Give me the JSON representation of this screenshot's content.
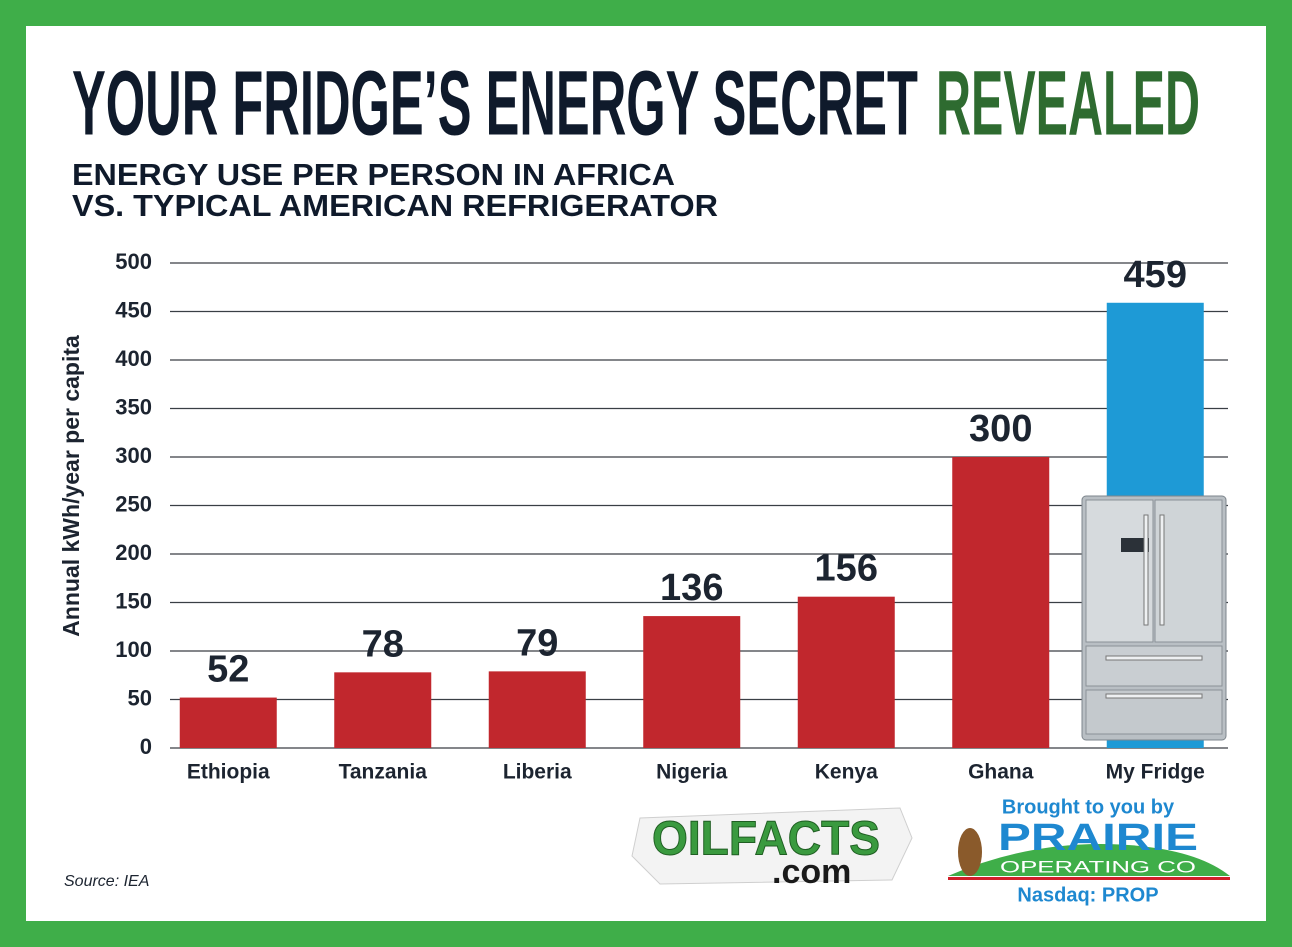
{
  "chart_data": {
    "type": "bar",
    "title": "YOUR FRIDGE’S ENERGY SECRET",
    "title_highlight": "REVEALED",
    "subtitle": [
      "ENERGY USE PER PERSON IN AFRICA",
      "VS. TYPICAL AMERICAN REFRIGERATOR"
    ],
    "y_label": "Annual kWh/year per capita",
    "categories": [
      "Ethiopia",
      "Tanzania",
      "Liberia",
      "Nigeria",
      "Kenya",
      "Ghana",
      "My Fridge"
    ],
    "values": [
      52,
      78,
      79,
      136,
      156,
      300,
      459
    ],
    "colors": [
      "#c1272d",
      "#c1272d",
      "#c1272d",
      "#c1272d",
      "#c1272d",
      "#c1272d",
      "#1e9ad6"
    ],
    "ylim": [
      0,
      500
    ],
    "yticks": [
      0,
      50,
      100,
      150,
      200,
      250,
      300,
      350,
      400,
      450,
      500
    ],
    "grid": true,
    "source": "Source: IEA"
  },
  "branding": {
    "oilfacts": "OILFACTS",
    "oilfacts_domain": ".com",
    "sponsor_intro": "Brought to you by",
    "sponsor_name": "PRAIRIE",
    "sponsor_sub": "OPERATING CO",
    "ticker": "Nasdaq: PROP"
  }
}
